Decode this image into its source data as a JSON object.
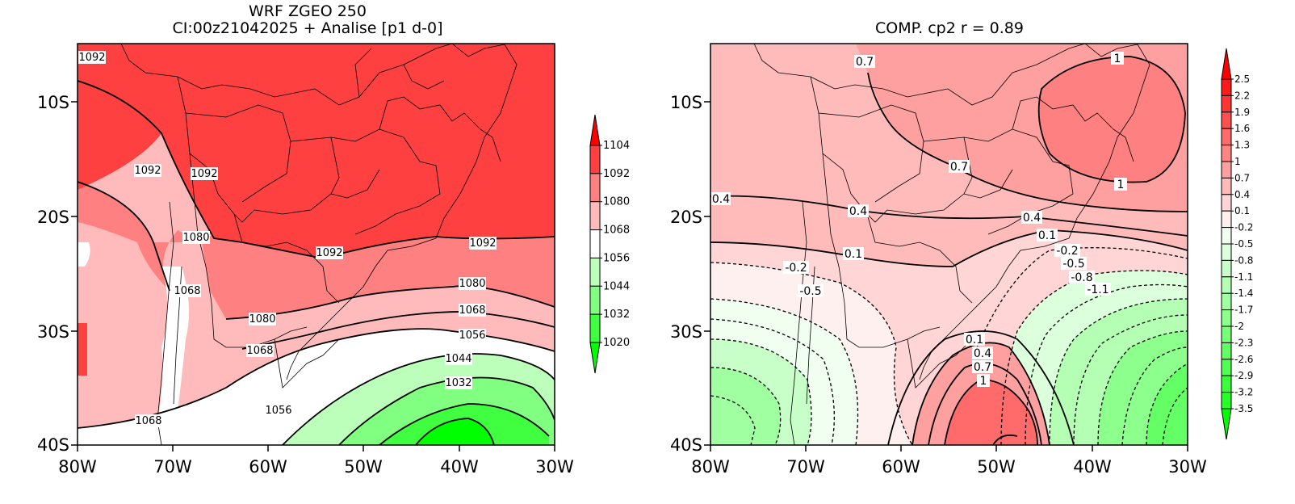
{
  "left_panel": {
    "title_line1": "WRF ZGEO 250",
    "title_line2": "CI:00z21042025 + Analise  [p1 d-0]",
    "lat_labels": [
      "10S",
      "20S",
      "30S",
      "40S"
    ],
    "lon_labels": [
      "80W",
      "70W",
      "60W",
      "50W",
      "40W",
      "30W"
    ],
    "contour_labels": [
      "1092",
      "1092",
      "1092",
      "1080",
      "1092",
      "1092",
      "1068",
      "1080",
      "1068",
      "1080",
      "1068",
      "1056",
      "1044",
      "1032",
      "1056",
      "1068"
    ],
    "colorbar": {
      "levels": [
        "1104",
        "1092",
        "1080",
        "1068",
        "1056",
        "1044",
        "1032",
        "1020"
      ],
      "colors": [
        "#ff0000",
        "#ff4040",
        "#ff8080",
        "#ffbbbb",
        "#ffffff",
        "#bbffbb",
        "#80ff80",
        "#40ff40",
        "#00ff00"
      ]
    }
  },
  "right_panel": {
    "title": "COMP. cp2  r =  0.89",
    "lat_labels": [
      "10S",
      "20S",
      "30S",
      "40S"
    ],
    "lon_labels": [
      "80W",
      "70W",
      "60W",
      "50W",
      "40W",
      "30W"
    ],
    "contour_labels": [
      "0.7",
      "1",
      "0.7",
      "1",
      "0.4",
      "0.4",
      "0.4",
      "0.1",
      "-0.2",
      "0.1",
      "-0.2",
      "-0.5",
      "-0.5",
      "-0.8",
      "-1.1",
      "0.1",
      "0.4",
      "0.7",
      "1"
    ],
    "colorbar": {
      "levels": [
        "2.5",
        "2.2",
        "1.9",
        "1.6",
        "1.3",
        "1",
        "0.7",
        "0.4",
        "0.1",
        "-0.2",
        "-0.5",
        "-0.8",
        "-1.1",
        "-1.4",
        "-1.7",
        "-2",
        "-2.3",
        "-2.6",
        "-2.9",
        "-3.2",
        "-3.5"
      ],
      "colors": [
        "#ff0000",
        "#ff1a1a",
        "#ff3535",
        "#ff5050",
        "#ff6a6a",
        "#ff8585",
        "#ffa0a0",
        "#ffbaba",
        "#ffd5d5",
        "#fff0f0",
        "#f0fff0",
        "#dcffdc",
        "#c8ffc8",
        "#b4ffb4",
        "#a0ffa0",
        "#8cff8c",
        "#78ff78",
        "#64ff64",
        "#50ff50",
        "#3cff3c",
        "#28ff28",
        "#00ff00"
      ]
    }
  }
}
